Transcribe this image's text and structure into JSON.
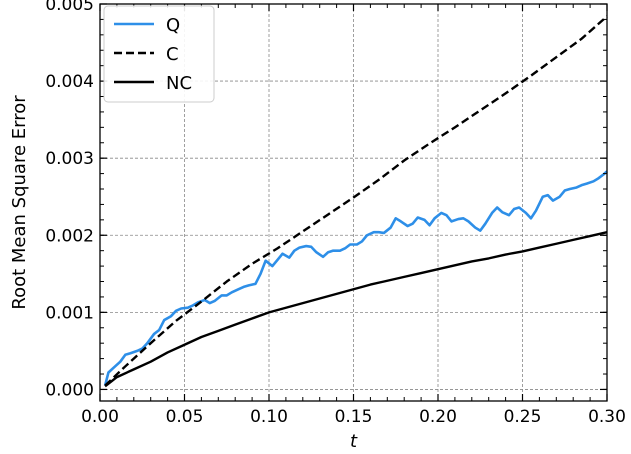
{
  "chart_data": {
    "type": "line",
    "title": "",
    "xlabel": "t",
    "ylabel": "Root Mean Square Error",
    "xlim": [
      0.0,
      0.3
    ],
    "ylim": [
      -0.00015,
      0.005
    ],
    "x_ticks": [
      0.0,
      0.05,
      0.1,
      0.15,
      0.2,
      0.25,
      0.3
    ],
    "x_tick_labels": [
      "0.00",
      "0.05",
      "0.10",
      "0.15",
      "0.20",
      "0.25",
      "0.30"
    ],
    "y_ticks": [
      0.0,
      0.001,
      0.002,
      0.003,
      0.004,
      0.005
    ],
    "y_tick_labels": [
      "0.000",
      "0.001",
      "0.002",
      "0.003",
      "0.004",
      "0.005"
    ],
    "grid": true,
    "legend_position": "top-left",
    "series": [
      {
        "name": "Q",
        "color": "#2e8fe8",
        "style": "solid",
        "x": [
          0.003,
          0.005,
          0.008,
          0.012,
          0.015,
          0.018,
          0.022,
          0.025,
          0.028,
          0.032,
          0.035,
          0.038,
          0.042,
          0.045,
          0.048,
          0.052,
          0.055,
          0.058,
          0.062,
          0.065,
          0.068,
          0.072,
          0.075,
          0.078,
          0.082,
          0.085,
          0.088,
          0.092,
          0.095,
          0.098,
          0.102,
          0.105,
          0.108,
          0.112,
          0.115,
          0.118,
          0.122,
          0.125,
          0.128,
          0.132,
          0.135,
          0.138,
          0.142,
          0.145,
          0.148,
          0.152,
          0.155,
          0.158,
          0.162,
          0.165,
          0.168,
          0.172,
          0.175,
          0.178,
          0.182,
          0.185,
          0.188,
          0.192,
          0.195,
          0.198,
          0.202,
          0.205,
          0.208,
          0.212,
          0.215,
          0.218,
          0.222,
          0.225,
          0.228,
          0.232,
          0.235,
          0.238,
          0.242,
          0.245,
          0.248,
          0.252,
          0.255,
          0.258,
          0.262,
          0.265,
          0.268,
          0.272,
          0.275,
          0.278,
          0.282,
          0.285,
          0.288,
          0.292,
          0.295,
          0.298,
          0.3
        ],
        "values": [
          5e-05,
          0.00022,
          0.00028,
          0.00036,
          0.00045,
          0.00047,
          0.0005,
          0.00053,
          0.0006,
          0.00072,
          0.00077,
          0.0009,
          0.00095,
          0.00102,
          0.00105,
          0.00106,
          0.00109,
          0.00113,
          0.00116,
          0.00112,
          0.00115,
          0.00122,
          0.00122,
          0.00126,
          0.0013,
          0.00133,
          0.00135,
          0.00137,
          0.0015,
          0.00167,
          0.0016,
          0.00168,
          0.00176,
          0.00171,
          0.0018,
          0.00184,
          0.00186,
          0.00185,
          0.00178,
          0.00172,
          0.00178,
          0.0018,
          0.0018,
          0.00183,
          0.00188,
          0.00188,
          0.00192,
          0.002,
          0.00204,
          0.00204,
          0.00203,
          0.0021,
          0.00222,
          0.00218,
          0.00212,
          0.00215,
          0.00223,
          0.0022,
          0.00213,
          0.00222,
          0.00229,
          0.00226,
          0.00218,
          0.00221,
          0.00222,
          0.00218,
          0.0021,
          0.00206,
          0.00215,
          0.00229,
          0.00236,
          0.0023,
          0.00226,
          0.00234,
          0.00236,
          0.00229,
          0.00222,
          0.00232,
          0.0025,
          0.00252,
          0.00245,
          0.0025,
          0.00258,
          0.0026,
          0.00262,
          0.00265,
          0.00267,
          0.0027,
          0.00274,
          0.00279,
          0.00283
        ]
      },
      {
        "name": "C",
        "color": "#000000",
        "style": "dashed",
        "x": [
          0.003,
          0.015,
          0.03,
          0.045,
          0.06,
          0.075,
          0.09,
          0.105,
          0.12,
          0.135,
          0.15,
          0.165,
          0.18,
          0.195,
          0.21,
          0.225,
          0.24,
          0.255,
          0.27,
          0.285,
          0.3
        ],
        "values": [
          5e-05,
          0.0003,
          0.0006,
          0.00089,
          0.00114,
          0.0014,
          0.00163,
          0.00183,
          0.00205,
          0.00227,
          0.00249,
          0.00272,
          0.00297,
          0.00319,
          0.0034,
          0.00362,
          0.00384,
          0.00407,
          0.00431,
          0.00455,
          0.00484
        ]
      },
      {
        "name": "NC",
        "color": "#000000",
        "style": "solid",
        "x": [
          0.003,
          0.01,
          0.02,
          0.03,
          0.04,
          0.05,
          0.06,
          0.07,
          0.08,
          0.09,
          0.1,
          0.11,
          0.12,
          0.13,
          0.14,
          0.15,
          0.16,
          0.17,
          0.18,
          0.19,
          0.2,
          0.21,
          0.22,
          0.23,
          0.24,
          0.25,
          0.26,
          0.27,
          0.28,
          0.29,
          0.3
        ],
        "values": [
          4e-05,
          0.00016,
          0.00026,
          0.00036,
          0.00048,
          0.00058,
          0.00068,
          0.00076,
          0.00084,
          0.00092,
          0.001,
          0.00106,
          0.00112,
          0.00118,
          0.00124,
          0.0013,
          0.00136,
          0.00141,
          0.00146,
          0.00151,
          0.00156,
          0.00161,
          0.00166,
          0.0017,
          0.00175,
          0.00179,
          0.00184,
          0.00189,
          0.00194,
          0.00199,
          0.00204
        ]
      }
    ]
  }
}
